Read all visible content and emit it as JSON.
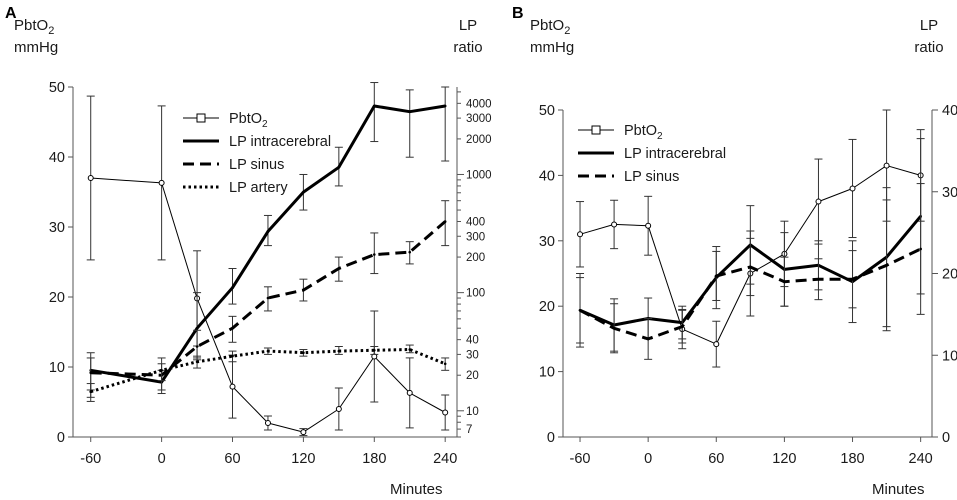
{
  "chart_data": [
    {
      "panel": "A",
      "type": "line",
      "x_label": "Minutes",
      "left_axis_label": [
        "PbtO",
        "2",
        "mmHg"
      ],
      "right_axis_label": [
        "LP",
        "ratio"
      ],
      "x_ticks": [
        -60,
        0,
        60,
        120,
        180,
        240
      ],
      "xlim": [
        -75,
        250
      ],
      "left_ticks": [
        0,
        10,
        20,
        30,
        40,
        50
      ],
      "ylim_left": [
        0,
        50
      ],
      "right_scale": "log",
      "right_ticks": [
        7,
        10,
        20,
        30,
        40,
        100,
        200,
        300,
        400,
        1000,
        2000,
        3000,
        4000
      ],
      "ylim_right": [
        6,
        5500
      ],
      "series": [
        {
          "name": "PbtO",
          "name_sub": "2",
          "axis": "left",
          "style": "thin-square",
          "x": [
            -60,
            0,
            30,
            60,
            90,
            120,
            150,
            180,
            210,
            240
          ],
          "y": [
            37,
            36.3,
            19.8,
            7.2,
            2,
            0.7,
            4,
            11.5,
            6.3,
            3.5
          ],
          "err": [
            11.7,
            11,
            6.8,
            4.5,
            1,
            0.5,
            3,
            6.5,
            5,
            2.5
          ]
        },
        {
          "name": "LP intracerebral",
          "axis": "right",
          "style": "solid",
          "x": [
            -60,
            0,
            30,
            60,
            90,
            120,
            150,
            180,
            210,
            240
          ],
          "y": [
            22,
            17.5,
            50,
            110,
            330,
            710,
            1150,
            3800,
            3400,
            3800
          ],
          "err_y": [
            [
              15,
              28
            ],
            [
              14,
              22
            ],
            [
              28,
              100
            ],
            [
              80,
              160
            ],
            [
              250,
              450
            ],
            [
              500,
              1000
            ],
            [
              800,
              1700
            ],
            [
              1900,
              6000
            ],
            [
              1400,
              5200
            ],
            [
              1300,
              5500
            ]
          ]
        },
        {
          "name": "LP sinus",
          "axis": "right",
          "style": "dashed",
          "x": [
            -60,
            0,
            30,
            60,
            90,
            120,
            150,
            180,
            210,
            240
          ],
          "y": [
            21,
            20,
            35,
            50,
            90,
            105,
            160,
            210,
            220,
            400
          ],
          "err_y": [
            [
              13,
              31
            ],
            [
              15,
              28
            ],
            [
              27,
              48
            ],
            [
              38,
              63
            ],
            [
              70,
              112
            ],
            [
              85,
              130
            ],
            [
              125,
              200
            ],
            [
              145,
              320
            ],
            [
              175,
              270
            ],
            [
              250,
              600
            ]
          ]
        },
        {
          "name": "LP artery",
          "axis": "right",
          "style": "dotted",
          "x": [
            -60,
            0,
            30,
            60,
            90,
            120,
            150,
            180,
            210,
            240
          ],
          "y": [
            14.5,
            22,
            26,
            29,
            32,
            31,
            32,
            32.5,
            33,
            25
          ],
          "err_y": [
            [
              12,
              17
            ],
            [
              18,
              25
            ],
            [
              23,
              29
            ],
            [
              26,
              32
            ],
            [
              30,
              34
            ],
            [
              29,
              33
            ],
            [
              30,
              35
            ],
            [
              30,
              35
            ],
            [
              31,
              36
            ],
            [
              22,
              28
            ]
          ]
        }
      ]
    },
    {
      "panel": "B",
      "type": "line",
      "x_label": "Minutes",
      "left_axis_label": [
        "PbtO",
        "2",
        "mmHg"
      ],
      "right_axis_label": [
        "LP",
        "ratio"
      ],
      "x_ticks": [
        -60,
        0,
        60,
        120,
        180,
        240
      ],
      "xlim": [
        -75,
        250
      ],
      "left_ticks": [
        0,
        10,
        20,
        30,
        40,
        50
      ],
      "ylim_left": [
        0,
        50
      ],
      "right_ticks": [
        0,
        10,
        20,
        30,
        40
      ],
      "ylim_right": [
        0,
        40
      ],
      "series": [
        {
          "name": "PbtO",
          "name_sub": "2",
          "axis": "left",
          "style": "thin-square",
          "x": [
            -60,
            -30,
            0,
            30,
            60,
            90,
            120,
            150,
            180,
            210,
            240
          ],
          "y": [
            31,
            32.5,
            32.3,
            16.5,
            14.2,
            25,
            28,
            36,
            38,
            41.5,
            40
          ],
          "err": [
            5,
            3.7,
            4.5,
            3,
            3.5,
            6.5,
            5,
            6.5,
            7.5,
            8.5,
            7
          ]
        },
        {
          "name": "LP intracerebral",
          "axis": "right",
          "style": "solid",
          "x": [
            -60,
            -30,
            0,
            30,
            60,
            90,
            120,
            150,
            180,
            210,
            240
          ],
          "y": [
            15.5,
            13.7,
            14.5,
            14,
            19.5,
            23.5,
            20.5,
            21,
            19,
            22,
            27
          ],
          "err": [
            4.5,
            3.2,
            2.5,
            2,
            3.8,
            4.8,
            4.5,
            3,
            5,
            8.5,
            9.5
          ]
        },
        {
          "name": "LP sinus",
          "axis": "right",
          "style": "dashed",
          "x": [
            -60,
            -30,
            0,
            30,
            60,
            90,
            120,
            150,
            180,
            210,
            240
          ],
          "y": [
            15.5,
            13.3,
            12,
            13.5,
            19.7,
            20.8,
            19,
            19.3,
            19.3,
            21,
            23
          ],
          "err": [
            4,
            3,
            2.5,
            2,
            3,
            3.5,
            3,
            2.5,
            3.5,
            8,
            8
          ]
        }
      ]
    }
  ]
}
